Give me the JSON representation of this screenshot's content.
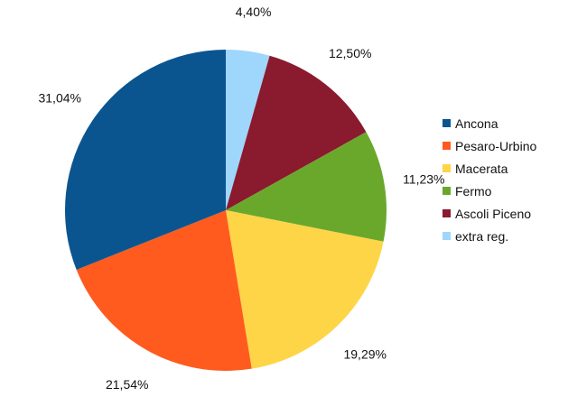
{
  "chart_data": {
    "type": "pie",
    "title": "",
    "start": "12 o'clock, clockwise",
    "legend_position": "right",
    "slices": [
      {
        "label": "extra reg.",
        "value": 4.4,
        "value_label": "4,40%",
        "color": "#9fd6fb"
      },
      {
        "label": "Ascoli Piceno",
        "value": 12.5,
        "value_label": "12,50%",
        "color": "#8a1a2e"
      },
      {
        "label": "Fermo",
        "value": 11.23,
        "value_label": "11,23%",
        "color": "#6aa82c"
      },
      {
        "label": "Macerata",
        "value": 19.29,
        "value_label": "19,29%",
        "color": "#fdd547"
      },
      {
        "label": "Pesaro-Urbino",
        "value": 21.54,
        "value_label": "21,54%",
        "color": "#ff5b1f"
      },
      {
        "label": "Ancona",
        "value": 31.04,
        "value_label": "31,04%",
        "color": "#0a5590"
      }
    ],
    "legend": [
      {
        "label": "Ancona",
        "color": "#0a5590"
      },
      {
        "label": "Pesaro-Urbino",
        "color": "#ff5b1f"
      },
      {
        "label": "Macerata",
        "color": "#fdd547"
      },
      {
        "label": "Fermo",
        "color": "#6aa82c"
      },
      {
        "label": "Ascoli Piceno",
        "color": "#8a1a2e"
      },
      {
        "label": "extra reg.",
        "color": "#9fd6fb"
      }
    ]
  }
}
